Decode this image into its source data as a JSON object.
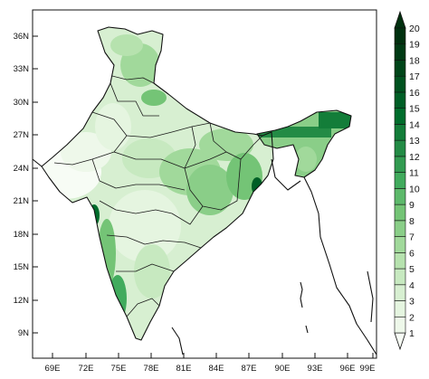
{
  "map": {
    "lat_labels": [
      "36N",
      "33N",
      "30N",
      "27N",
      "24N",
      "21N",
      "18N",
      "15N",
      "12N",
      "9N"
    ],
    "lon_labels": [
      "69E",
      "72E",
      "75E",
      "78E",
      "81E",
      "84E",
      "87E",
      "90E",
      "93E",
      "96E",
      "99E"
    ],
    "extent": {
      "lon": [
        66,
        100
      ],
      "lat": [
        6,
        38
      ]
    }
  },
  "colorbar": {
    "levels": [
      "1",
      "2",
      "3",
      "4",
      "5",
      "6",
      "7",
      "8",
      "9",
      "10",
      "11",
      "12",
      "13",
      "14",
      "15",
      "16",
      "17",
      "18",
      "19",
      "20"
    ],
    "colors": [
      "#f7fcf5",
      "#eef8ea",
      "#e5f5e0",
      "#d7efd1",
      "#c7e9c0",
      "#b6e2ae",
      "#a1d99b",
      "#8ace88",
      "#74c476",
      "#5db96b",
      "#41ab5d",
      "#329b51",
      "#238b45",
      "#137d39",
      "#006d2c",
      "#005f26",
      "#00521f",
      "#004519",
      "#003a14",
      "#00300f"
    ]
  }
}
